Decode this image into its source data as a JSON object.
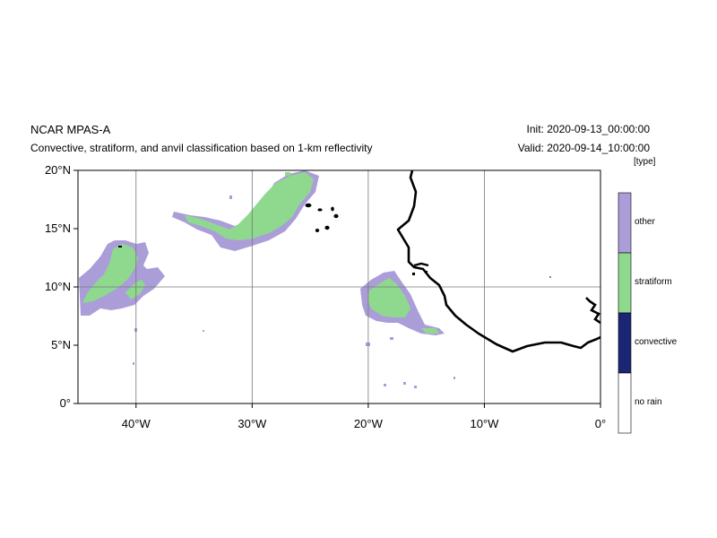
{
  "header": {
    "model": "NCAR MPAS-A",
    "description": "Convective, stratiform, and anvil classification based on 1-km reflectivity",
    "init": "Init: 2020-09-13_00:00:00",
    "valid": "Valid: 2020-09-14_10:00:00"
  },
  "map": {
    "lat_range": [
      0,
      20
    ],
    "lon_range": [
      -45,
      0
    ],
    "y_ticks": [
      {
        "value": 20,
        "label": "20°N"
      },
      {
        "value": 15,
        "label": "15°N"
      },
      {
        "value": 10,
        "label": "10°N"
      },
      {
        "value": 5,
        "label": "5°N"
      },
      {
        "value": 0,
        "label": "0°"
      }
    ],
    "x_ticks": [
      {
        "value": -40,
        "label": "40°W"
      },
      {
        "value": -30,
        "label": "30°W"
      },
      {
        "value": -20,
        "label": "20°W"
      },
      {
        "value": -10,
        "label": "10°W"
      },
      {
        "value": 0,
        "label": "0°"
      }
    ],
    "gridlines": {
      "lat": [
        10
      ],
      "lon": [
        -40,
        -30,
        -20,
        -10
      ]
    },
    "coastline_color": "#000000"
  },
  "legend": {
    "units": "[type]",
    "categories": [
      {
        "label": "other",
        "color": "#ab9ed8"
      },
      {
        "label": "stratiform",
        "color": "#8fd98f"
      },
      {
        "label": "convective",
        "color": "#1a2673"
      },
      {
        "label": "no rain",
        "color": "#ffffff"
      }
    ]
  }
}
